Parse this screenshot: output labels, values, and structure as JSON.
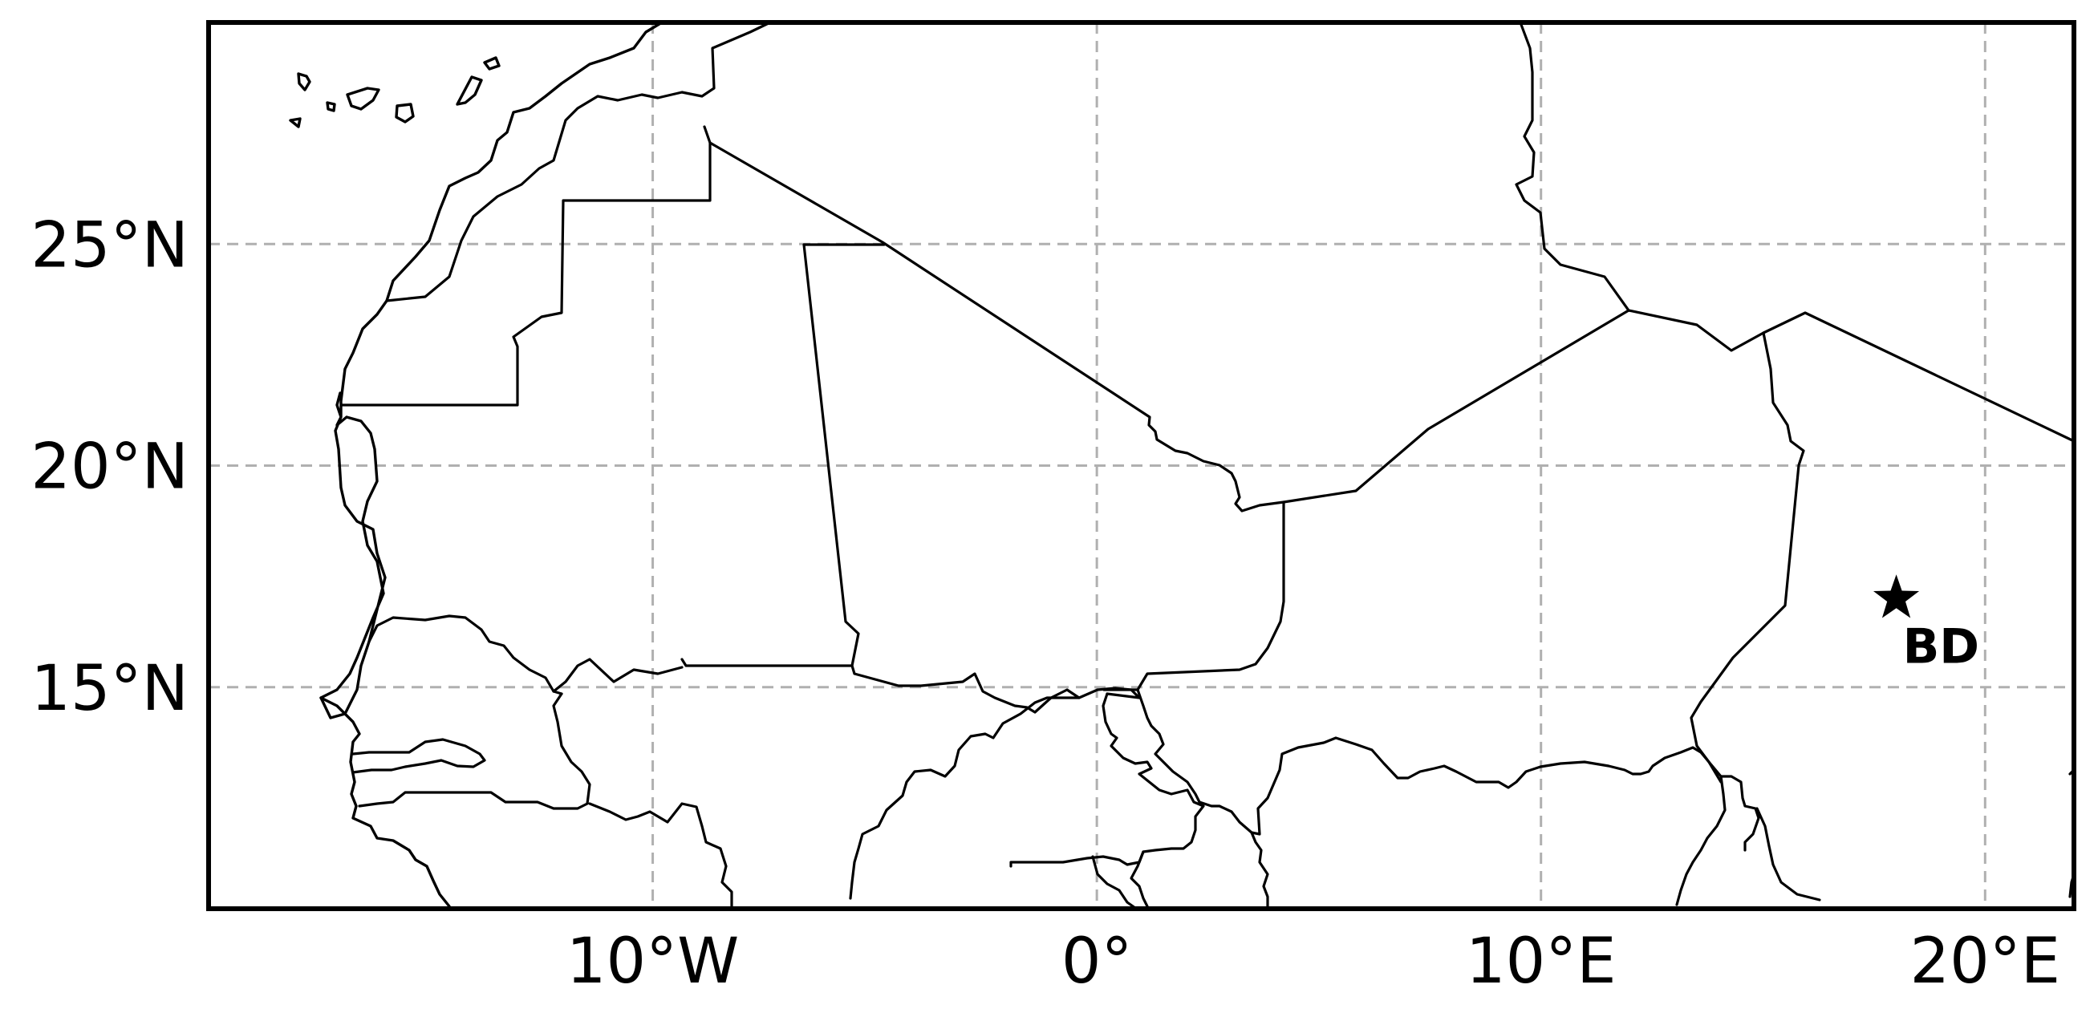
{
  "map": {
    "extent": {
      "lon_min": -20,
      "lon_max": 22,
      "lat_min": 10,
      "lat_max": 30
    },
    "gridlines": {
      "style": "dashed",
      "color": "#b0b0b0"
    },
    "x_ticks": [
      {
        "lon": -10,
        "label": "10°W"
      },
      {
        "lon": 0,
        "label": "0°"
      },
      {
        "lon": 10,
        "label": "10°E"
      },
      {
        "lon": 20,
        "label": "20°E"
      }
    ],
    "y_ticks": [
      {
        "lat": 25,
        "label": "25°N"
      },
      {
        "lat": 20,
        "label": "20°N"
      },
      {
        "lat": 15,
        "label": "15°N"
      }
    ],
    "marker": {
      "symbol": "star-icon",
      "lon": 18,
      "lat": 17,
      "label": "BD",
      "color": "#000000"
    }
  }
}
